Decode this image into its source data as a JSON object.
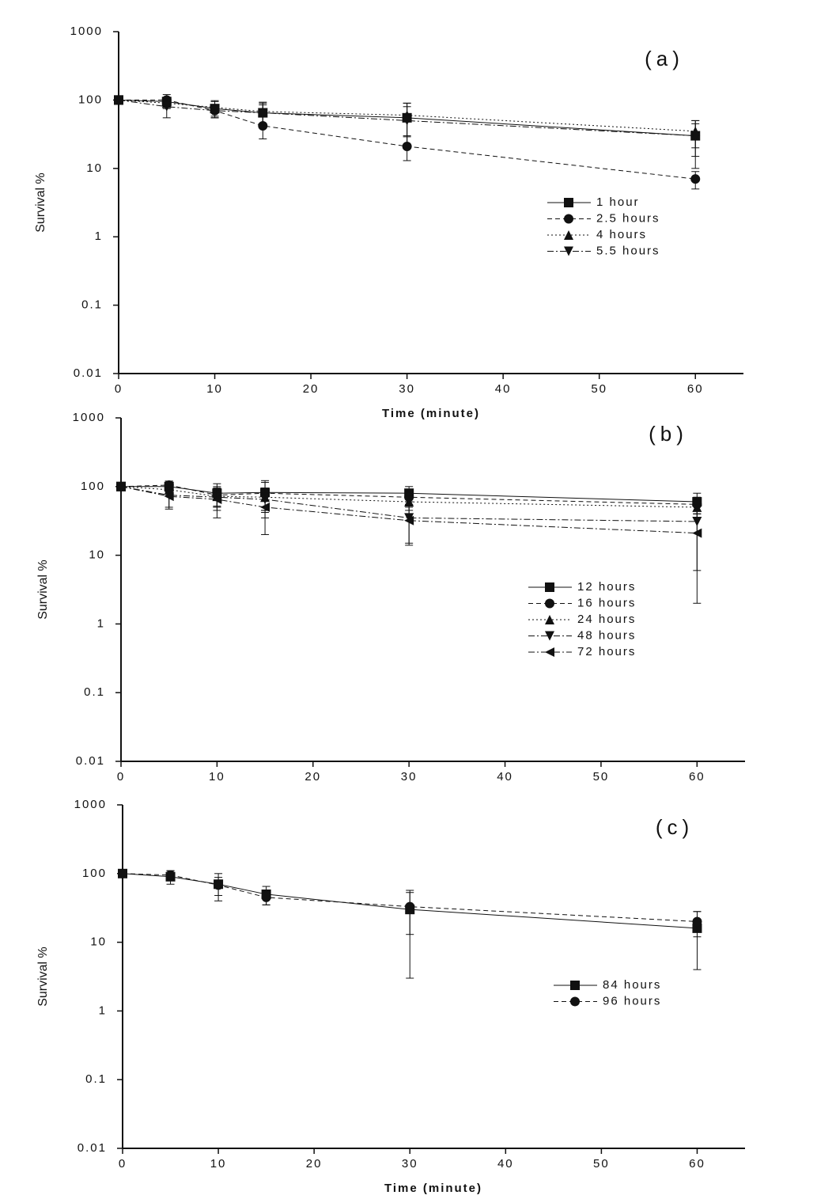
{
  "chart_data": [
    {
      "type": "line",
      "title": "(a)",
      "xlabel": "Time (minute)",
      "ylabel": "Survival %",
      "log_y": true,
      "xlim": [
        0,
        65
      ],
      "xticks": [
        0,
        10,
        20,
        30,
        40,
        50,
        60
      ],
      "ylim": [
        0.01,
        1000
      ],
      "yticks": [
        0.01,
        0.1,
        1,
        10,
        100,
        1000
      ],
      "x": [
        0,
        5,
        10,
        15,
        30,
        60
      ],
      "series": [
        {
          "name": "1 hour",
          "color": "#111111",
          "marker": "square",
          "dash": "solid",
          "values": [
            100,
            95,
            75,
            65,
            55,
            30
          ],
          "errors": [
            0,
            15,
            20,
            25,
            35,
            15
          ]
        },
        {
          "name": "2.5 hours",
          "color": "#111111",
          "marker": "circle",
          "dash": "dashed",
          "values": [
            100,
            100,
            70,
            42,
            21,
            7
          ],
          "errors": [
            0,
            20,
            15,
            15,
            8,
            2
          ]
        },
        {
          "name": "4 hours",
          "color": "#111111",
          "marker": "triangle-up",
          "dash": "dotted",
          "values": [
            100,
            90,
            78,
            68,
            60,
            35
          ],
          "errors": [
            0,
            15,
            20,
            25,
            30,
            15
          ]
        },
        {
          "name": "5.5 hours",
          "color": "#111111",
          "marker": "triangle-down",
          "dash": "dashdot",
          "values": [
            100,
            80,
            70,
            65,
            50,
            30
          ],
          "errors": [
            0,
            25,
            15,
            20,
            30,
            20
          ]
        }
      ]
    },
    {
      "type": "line",
      "title": "(b)",
      "ylabel": "Survival %",
      "log_y": true,
      "xlim": [
        0,
        65
      ],
      "xticks": [
        0,
        10,
        20,
        30,
        40,
        50,
        60
      ],
      "ylim": [
        0.01,
        1000
      ],
      "yticks": [
        0.01,
        0.1,
        1,
        10,
        100,
        1000
      ],
      "x": [
        0,
        5,
        10,
        15,
        30,
        60
      ],
      "series": [
        {
          "name": "12 hours",
          "color": "#111111",
          "marker": "square",
          "dash": "solid",
          "values": [
            100,
            100,
            80,
            82,
            80,
            60
          ],
          "errors": [
            0,
            20,
            30,
            40,
            20,
            20
          ]
        },
        {
          "name": "16 hours",
          "color": "#111111",
          "marker": "circle",
          "dash": "dashed",
          "values": [
            100,
            105,
            75,
            80,
            70,
            55
          ],
          "errors": [
            0,
            15,
            25,
            35,
            15,
            15
          ]
        },
        {
          "name": "24 hours",
          "color": "#111111",
          "marker": "triangle-up",
          "dash": "dotted",
          "values": [
            100,
            90,
            72,
            70,
            60,
            50
          ],
          "errors": [
            0,
            15,
            20,
            25,
            15,
            15
          ]
        },
        {
          "name": "48 hours",
          "color": "#111111",
          "marker": "triangle-down",
          "dash": "dashdot",
          "values": [
            100,
            75,
            70,
            65,
            35,
            31
          ],
          "errors": [
            0,
            25,
            25,
            30,
            20,
            25
          ]
        },
        {
          "name": "72 hours",
          "color": "#111111",
          "marker": "triangle-left",
          "dash": "dashdot",
          "values": [
            100,
            72,
            65,
            50,
            32,
            21
          ],
          "errors": [
            0,
            25,
            30,
            30,
            18,
            19
          ]
        }
      ]
    },
    {
      "type": "line",
      "title": "(c)",
      "xlabel": "Time (minute)",
      "ylabel": "Survival %",
      "log_y": true,
      "xlim": [
        0,
        65
      ],
      "xticks": [
        0,
        10,
        20,
        30,
        40,
        50,
        60
      ],
      "ylim": [
        0.01,
        1000
      ],
      "yticks": [
        0.01,
        0.1,
        1,
        10,
        100,
        1000
      ],
      "x": [
        0,
        5,
        10,
        15,
        30,
        60
      ],
      "series": [
        {
          "name": "84 hours",
          "color": "#111111",
          "marker": "square",
          "dash": "solid",
          "values": [
            100,
            90,
            70,
            50,
            30,
            16
          ],
          "errors": [
            0,
            20,
            30,
            15,
            27,
            12
          ]
        },
        {
          "name": "96 hours",
          "color": "#111111",
          "marker": "circle",
          "dash": "dashed",
          "values": [
            100,
            95,
            68,
            45,
            33,
            20
          ],
          "errors": [
            0,
            15,
            20,
            10,
            20,
            8
          ]
        }
      ]
    }
  ]
}
